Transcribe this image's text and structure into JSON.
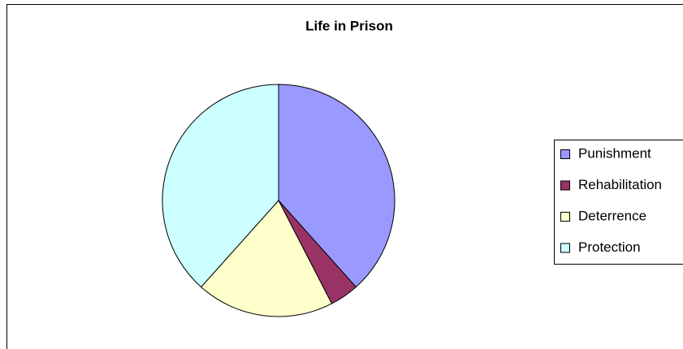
{
  "chart_data": {
    "type": "pie",
    "title": "Life in Prison",
    "categories": [
      "Punishment",
      "Rehabilitation",
      "Deterrence",
      "Protection"
    ],
    "values": [
      38,
      4,
      19,
      38
    ],
    "colors": [
      "#9999ff",
      "#993366",
      "#ffffcc",
      "#ccffff"
    ],
    "legend": "right"
  }
}
